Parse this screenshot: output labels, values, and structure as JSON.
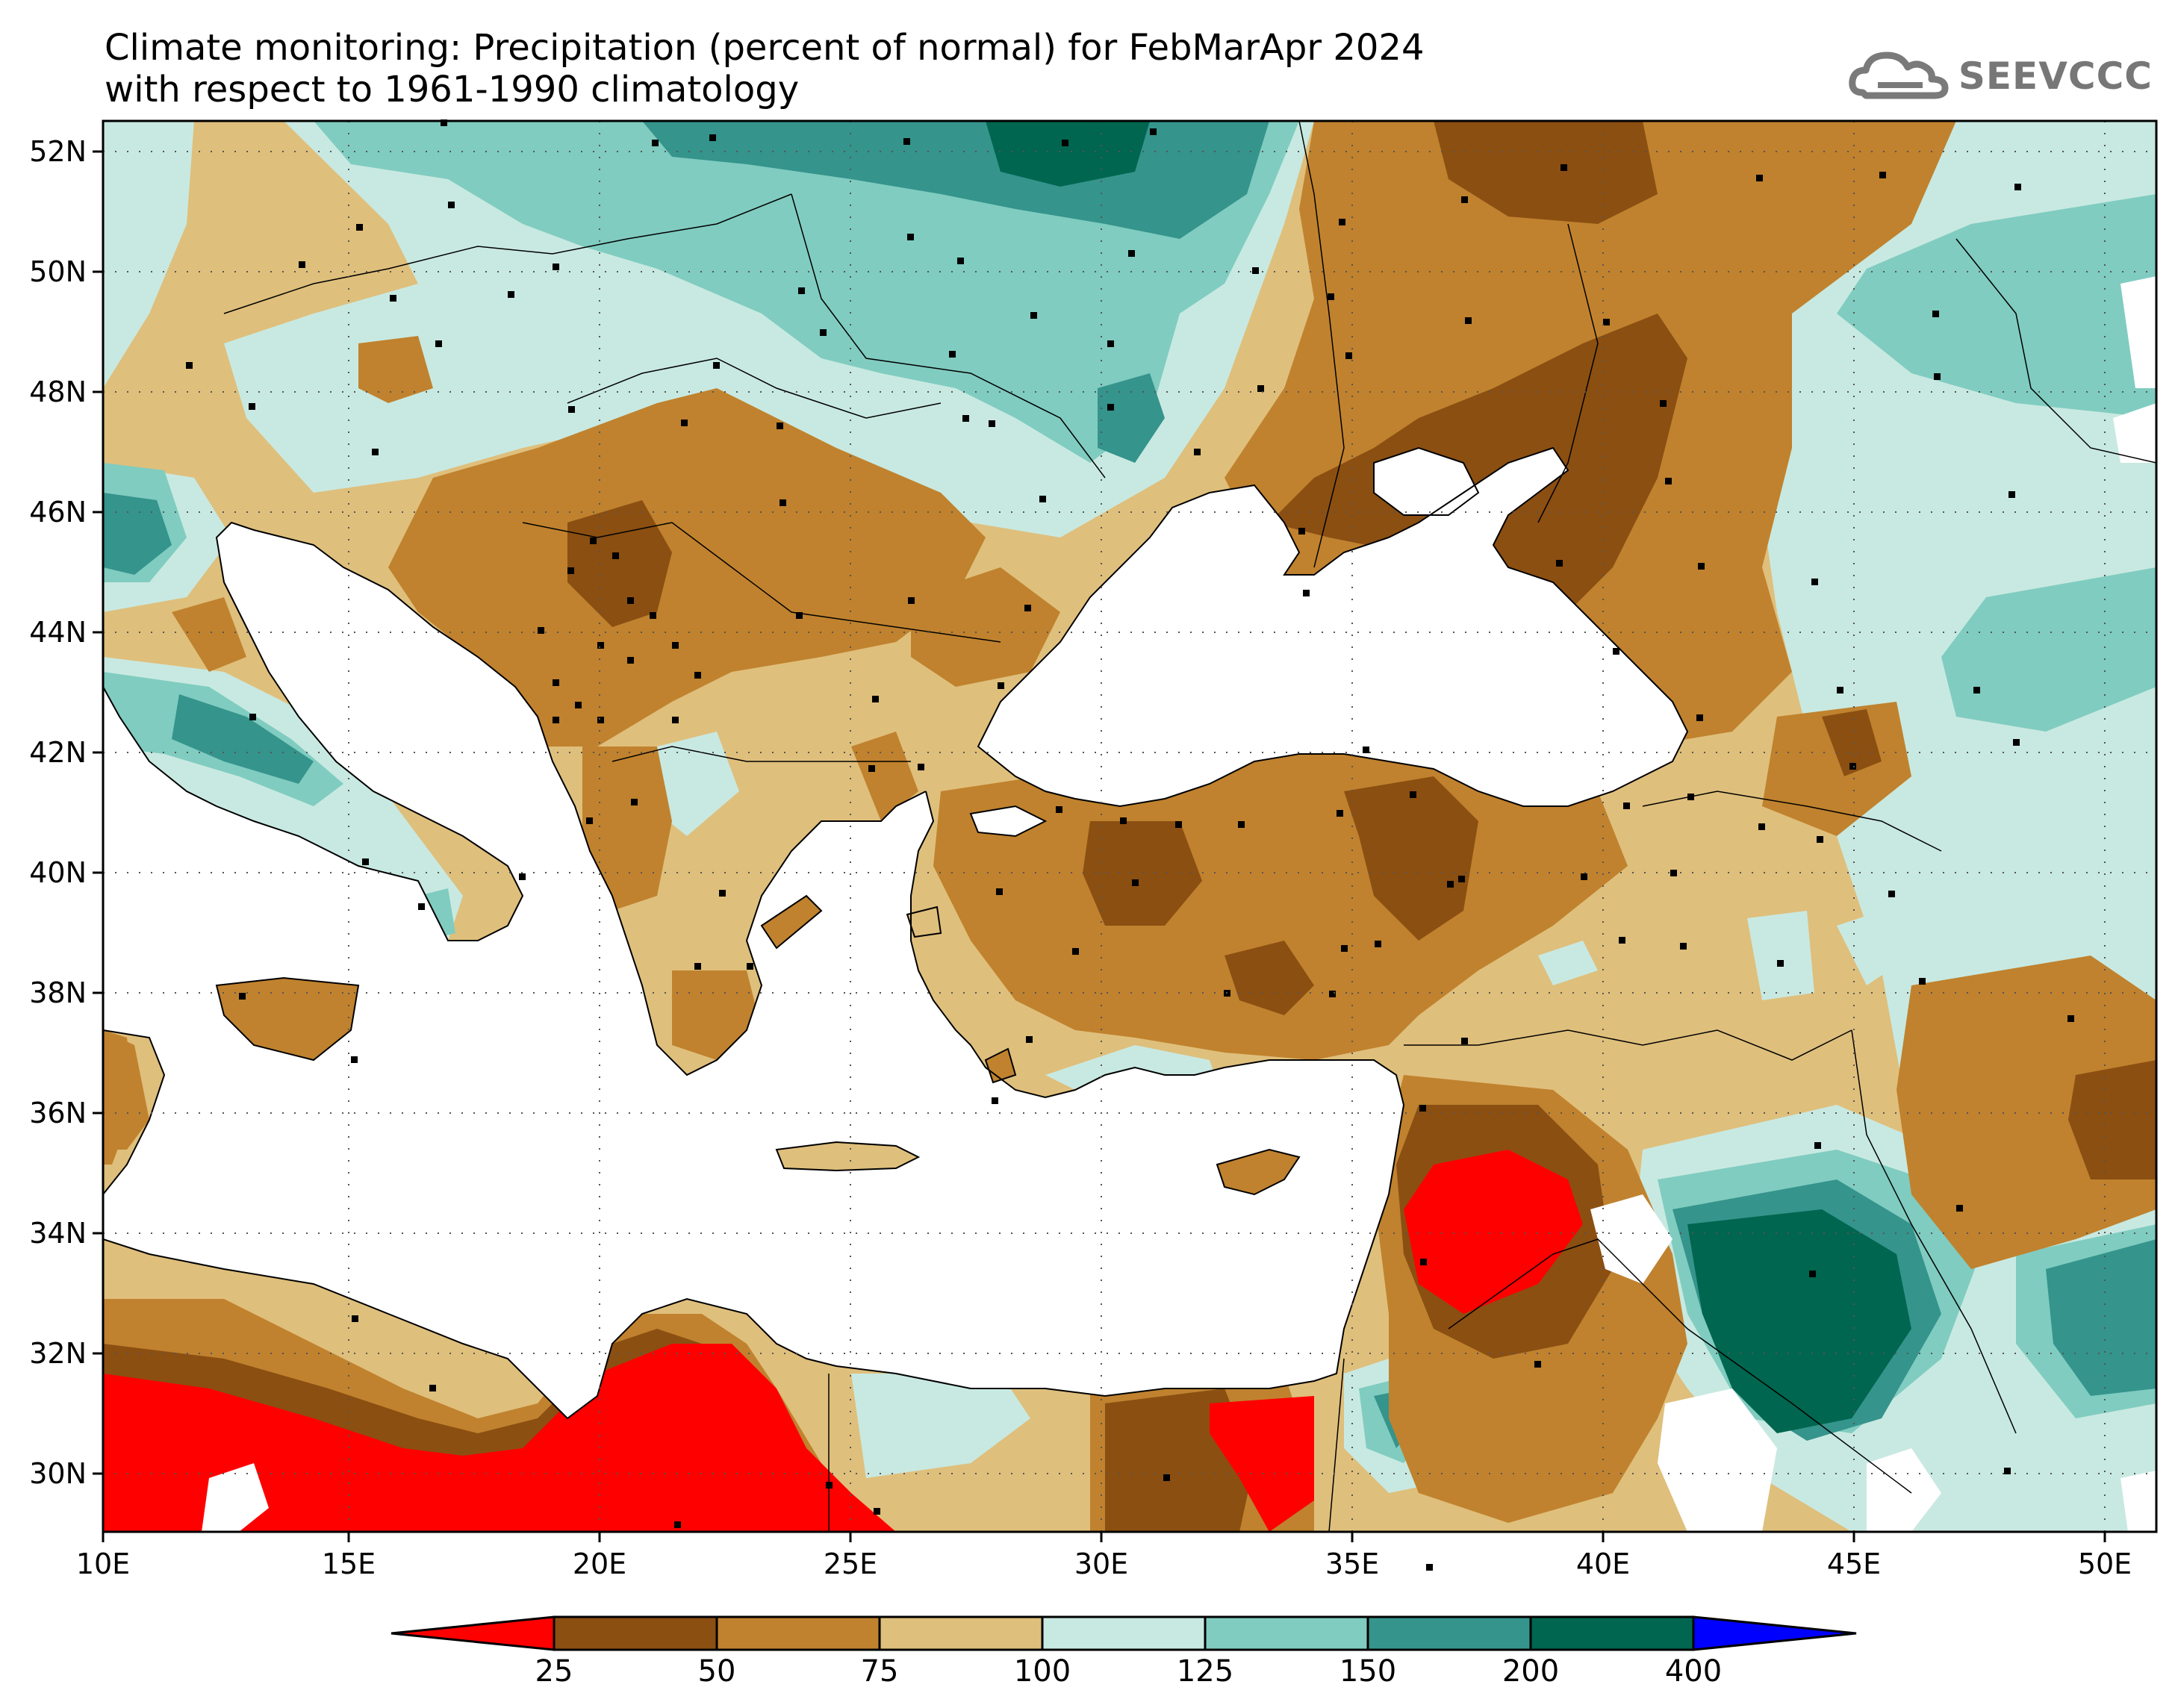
{
  "title": {
    "line1": "Climate monitoring: Precipitation (percent of normal) for FebMarApr 2024",
    "line2": "with respect to 1961-1990 climatology"
  },
  "logo": {
    "text": "SEEVCCC",
    "icon": "cloud-logo-icon"
  },
  "axes": {
    "lon_labels": [
      "10E",
      "15E",
      "20E",
      "25E",
      "30E",
      "35E",
      "40E",
      "45E",
      "50E"
    ],
    "lat_labels": [
      "52N",
      "50N",
      "48N",
      "46N",
      "44N",
      "42N",
      "40N",
      "38N",
      "36N",
      "34N",
      "32N",
      "30N"
    ],
    "lon_range": [
      10,
      51
    ],
    "lat_range": [
      29,
      52.5
    ]
  },
  "legend": {
    "bounds": [
      "25",
      "50",
      "75",
      "100",
      "125",
      "150",
      "200",
      "400"
    ],
    "colors": [
      "#ff0000",
      "#8b4f12",
      "#c0822e",
      "#dfbf7c",
      "#c8e9e1",
      "#80ccc0",
      "#35948c",
      "#00664f",
      "#0000ff"
    ]
  },
  "colors": {
    "sea": "#ffffff",
    "grid": "#555555"
  }
}
